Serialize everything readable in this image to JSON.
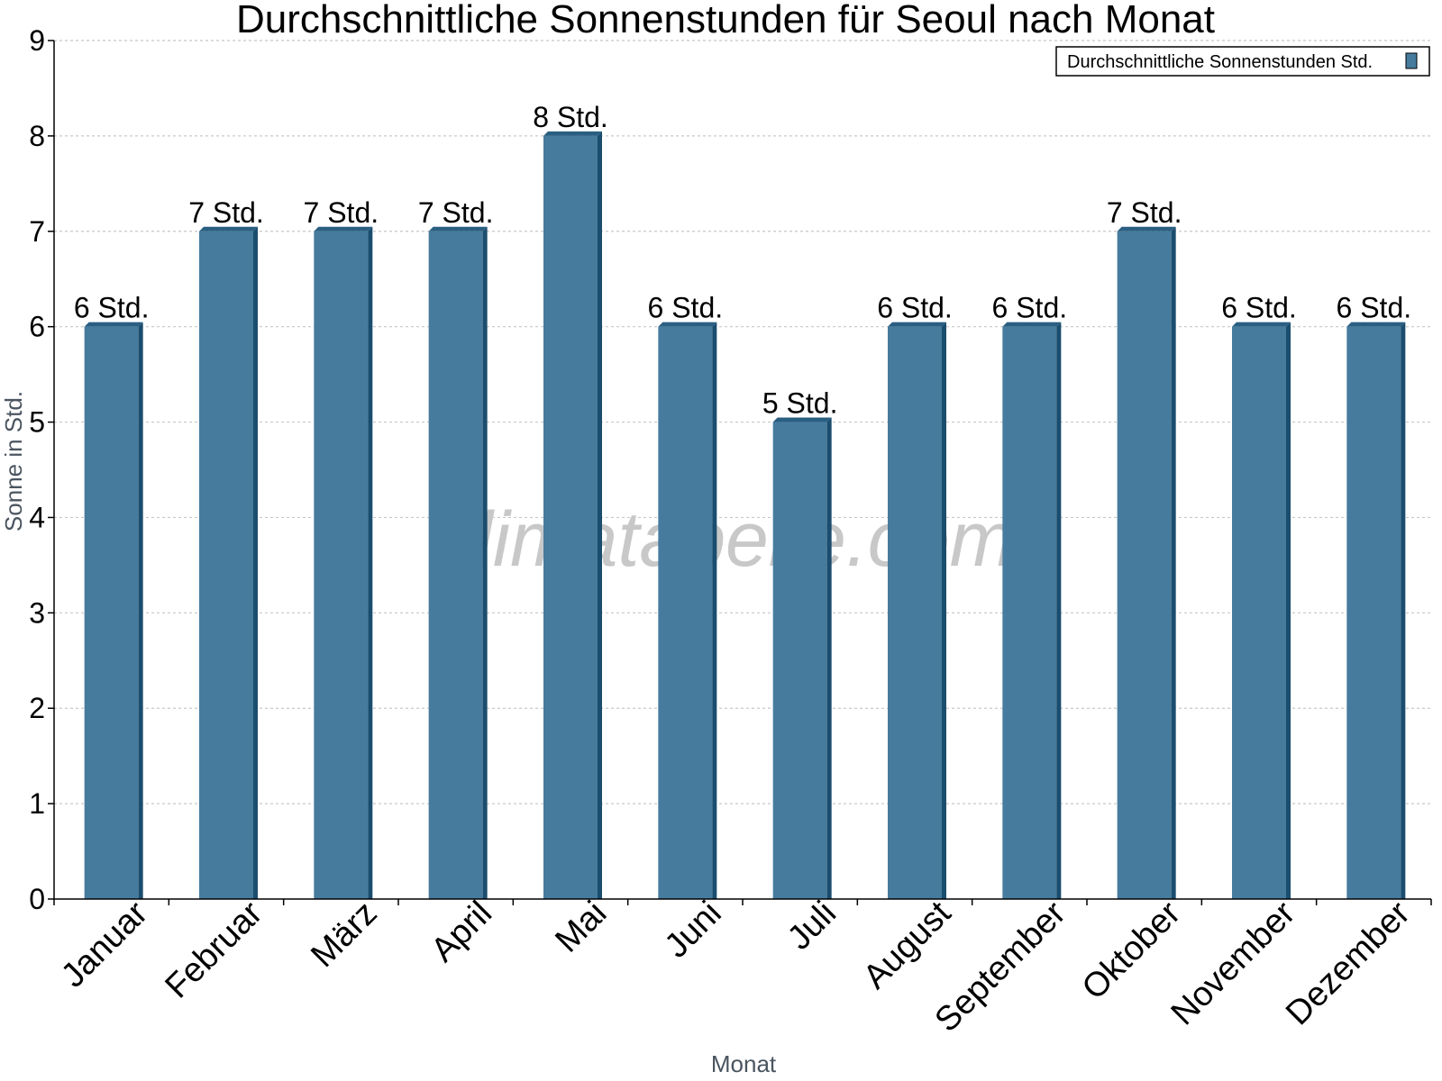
{
  "watermark": "klimatabelle.com",
  "colors": {
    "bar": "#467b9e",
    "bar_side": "#1b4d6e",
    "bar_top": "#2a5f82",
    "grid": "#c8c8c8"
  },
  "chart_data": {
    "type": "bar",
    "title": "Durchschnittliche Sonnenstunden für Seoul nach Monat",
    "xlabel": "Monat",
    "ylabel": "Sonne in Std.",
    "ylim": [
      0,
      9
    ],
    "yticks": [
      "0",
      "1",
      "2",
      "3",
      "4",
      "5",
      "6",
      "7",
      "8",
      "9"
    ],
    "grid": true,
    "legend_position": "top-right",
    "categories": [
      "Januar",
      "Februar",
      "März",
      "April",
      "Mai",
      "Juni",
      "Juli",
      "August",
      "September",
      "Oktober",
      "November",
      "Dezember"
    ],
    "series": [
      {
        "name": "Durchschnittliche Sonnenstunden Std.",
        "values": [
          6,
          7,
          7,
          7,
          8,
          6,
          5,
          6,
          6,
          7,
          6,
          6
        ],
        "labels": [
          "6 Std.",
          "7 Std.",
          "7 Std.",
          "7 Std.",
          "8 Std.",
          "6 Std.",
          "5 Std.",
          "6 Std.",
          "6 Std.",
          "7 Std.",
          "6 Std.",
          "6 Std."
        ]
      }
    ]
  }
}
